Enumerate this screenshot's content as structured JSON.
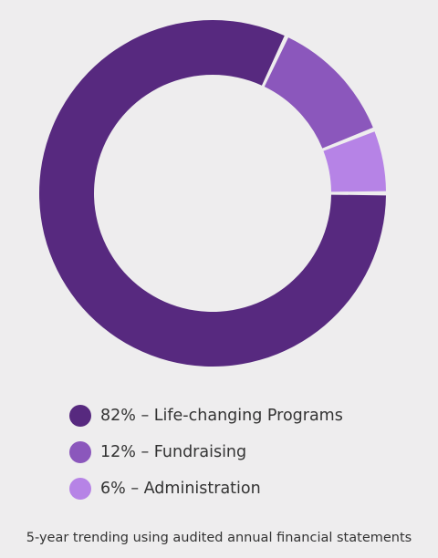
{
  "chart_data": {
    "type": "pie",
    "style": "donut",
    "slices": [
      {
        "label": "82% – Life-changing Programs",
        "value": 82,
        "color": "#57297f"
      },
      {
        "label": "12% – Fundraising",
        "value": 12,
        "color": "#8b57bc"
      },
      {
        "label": "6% – Administration",
        "value": 6,
        "color": "#b683e6"
      }
    ],
    "legend_position": "bottom",
    "caption": "5-year trending using audited annual financial statements"
  }
}
